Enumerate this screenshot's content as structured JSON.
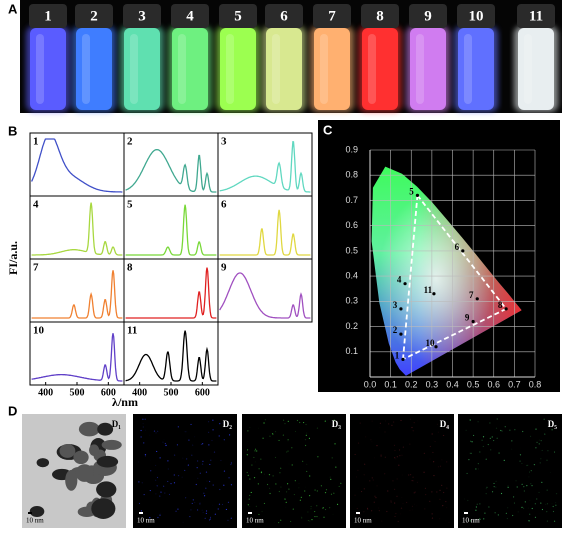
{
  "panel_a": {
    "label": "A",
    "vials": [
      {
        "label": "1",
        "color": "#5a5cff"
      },
      {
        "label": "2",
        "color": "#3f7dff"
      },
      {
        "label": "3",
        "color": "#5fe0b0"
      },
      {
        "label": "4",
        "color": "#6ef080"
      },
      {
        "label": "5",
        "color": "#9cff50"
      },
      {
        "label": "6",
        "color": "#d8e890"
      },
      {
        "label": "7",
        "color": "#ffb070"
      },
      {
        "label": "8",
        "color": "#ff3030"
      },
      {
        "label": "9",
        "color": "#d07cf0"
      },
      {
        "label": "10",
        "color": "#6070ff"
      },
      {
        "label": "11",
        "color": "#e8eef0"
      }
    ]
  },
  "panel_b": {
    "label": "B",
    "y_label": "FI/a.u.",
    "x_label": "λ/nm",
    "xlim": [
      350,
      650
    ],
    "xticks": [
      400,
      500,
      600
    ],
    "spectra": [
      {
        "label": "1",
        "color": "#4050c8",
        "peaks": [
          [
            410,
            0.95,
            30
          ],
          [
            470,
            0.3,
            50
          ]
        ]
      },
      {
        "label": "2",
        "color": "#40a890",
        "peaks": [
          [
            455,
            0.8,
            40
          ],
          [
            545,
            0.45,
            6
          ],
          [
            590,
            0.7,
            5
          ],
          [
            615,
            0.35,
            5
          ]
        ]
      },
      {
        "label": "3",
        "color": "#60d8c0",
        "peaks": [
          [
            470,
            0.3,
            50
          ],
          [
            545,
            0.45,
            6
          ],
          [
            590,
            0.95,
            5
          ],
          [
            615,
            0.35,
            5
          ]
        ]
      },
      {
        "label": "4",
        "color": "#a8d840",
        "peaks": [
          [
            490,
            0.1,
            40
          ],
          [
            545,
            0.95,
            5
          ],
          [
            590,
            0.25,
            5
          ],
          [
            615,
            0.15,
            5
          ]
        ]
      },
      {
        "label": "5",
        "color": "#78d838",
        "peaks": [
          [
            490,
            0.15,
            6
          ],
          [
            545,
            0.95,
            5
          ],
          [
            590,
            0.25,
            5
          ]
        ]
      },
      {
        "label": "6",
        "color": "#e0d840",
        "peaks": [
          [
            490,
            0.5,
            5
          ],
          [
            545,
            0.85,
            5
          ],
          [
            590,
            0.4,
            5
          ]
        ]
      },
      {
        "label": "7",
        "color": "#f08030",
        "peaks": [
          [
            490,
            0.25,
            5
          ],
          [
            545,
            0.45,
            5
          ],
          [
            590,
            0.35,
            5
          ],
          [
            615,
            0.9,
            5
          ]
        ]
      },
      {
        "label": "8",
        "color": "#e02020",
        "peaks": [
          [
            590,
            0.5,
            5
          ],
          [
            615,
            0.95,
            5
          ]
        ]
      },
      {
        "label": "9",
        "color": "#a050c0",
        "peaks": [
          [
            420,
            0.85,
            35
          ],
          [
            590,
            0.25,
            5
          ],
          [
            615,
            0.45,
            5
          ]
        ]
      },
      {
        "label": "10",
        "color": "#6040c8",
        "peaks": [
          [
            450,
            0.12,
            60
          ],
          [
            590,
            0.3,
            5
          ],
          [
            615,
            0.9,
            5
          ]
        ]
      },
      {
        "label": "11",
        "color": "#000000",
        "peaks": [
          [
            420,
            0.5,
            22
          ],
          [
            490,
            0.55,
            6
          ],
          [
            545,
            0.95,
            6
          ],
          [
            590,
            0.45,
            5
          ],
          [
            615,
            0.6,
            5
          ]
        ]
      }
    ]
  },
  "chart_data": {
    "type": "scatter",
    "label": "C",
    "xlim": [
      0,
      0.8
    ],
    "ylim": [
      0,
      0.9
    ],
    "xticks": [
      {
        "value": 0,
        "label": "0.0"
      },
      0.1,
      0.2,
      0.3,
      0.4,
      0.5,
      0.6,
      0.7,
      0.8
    ],
    "yticks": [
      0.1,
      0.2,
      0.3,
      0.4,
      0.5,
      0.6,
      0.7,
      0.8,
      0.9
    ],
    "grid": true,
    "point_labels": [
      "1",
      "2",
      "3",
      "4",
      "5",
      "6",
      "7",
      "8",
      "9",
      "10",
      "11"
    ],
    "x": [
      0.16,
      0.15,
      0.15,
      0.17,
      0.23,
      0.45,
      0.52,
      0.66,
      0.5,
      0.32,
      0.31
    ],
    "values": [
      0.07,
      0.17,
      0.27,
      0.37,
      0.72,
      0.5,
      0.31,
      0.27,
      0.22,
      0.12,
      0.33
    ]
  },
  "panel_d": {
    "label": "D",
    "images": [
      {
        "label": "D₁",
        "scale": "10 nm"
      },
      {
        "label": "D₂",
        "scale": "10 nm"
      },
      {
        "label": "D₃",
        "scale": "10 nm"
      },
      {
        "label": "D₄",
        "scale": "10 nm"
      },
      {
        "label": "D₅",
        "scale": "10 nm"
      }
    ]
  }
}
